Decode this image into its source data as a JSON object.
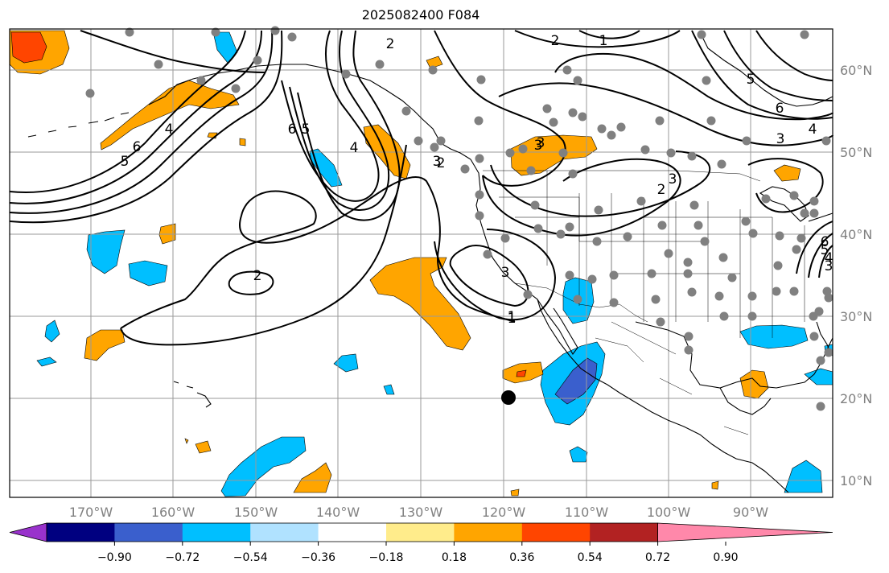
{
  "title": "2025082400 F084",
  "longitude_labels": [
    "170°W",
    "160°W",
    "150°W",
    "140°W",
    "130°W",
    "120°W",
    "110°W",
    "100°W",
    "90°W"
  ],
  "latitude_labels": [
    "60°N",
    "50°N",
    "40°N",
    "30°N",
    "20°N",
    "10°N"
  ],
  "contour_labels": [
    "2",
    "1",
    "2",
    "5",
    "6",
    "4",
    "3",
    "3",
    "4",
    "5",
    "6",
    "2",
    "1",
    "3",
    "3",
    "5",
    "6",
    "4",
    "2",
    "3",
    "2",
    "3",
    "1",
    "6",
    "5",
    "3",
    "4"
  ],
  "colorbar": {
    "tick_labels": [
      "−0.90",
      "−0.72",
      "−0.54",
      "−0.36",
      "−0.18",
      "0.18",
      "0.36",
      "0.54",
      "0.72",
      "0.90"
    ],
    "colors": [
      "#9932cc",
      "#000080",
      "#3a5fcd",
      "#00bfff",
      "#b0e2ff",
      "#ffffff",
      "#ffec8b",
      "#ffa500",
      "#ff4500",
      "#b22222",
      "#ff88aa"
    ]
  },
  "marker": {
    "label": "",
    "color": "#000000"
  },
  "station_color": "#808080"
}
